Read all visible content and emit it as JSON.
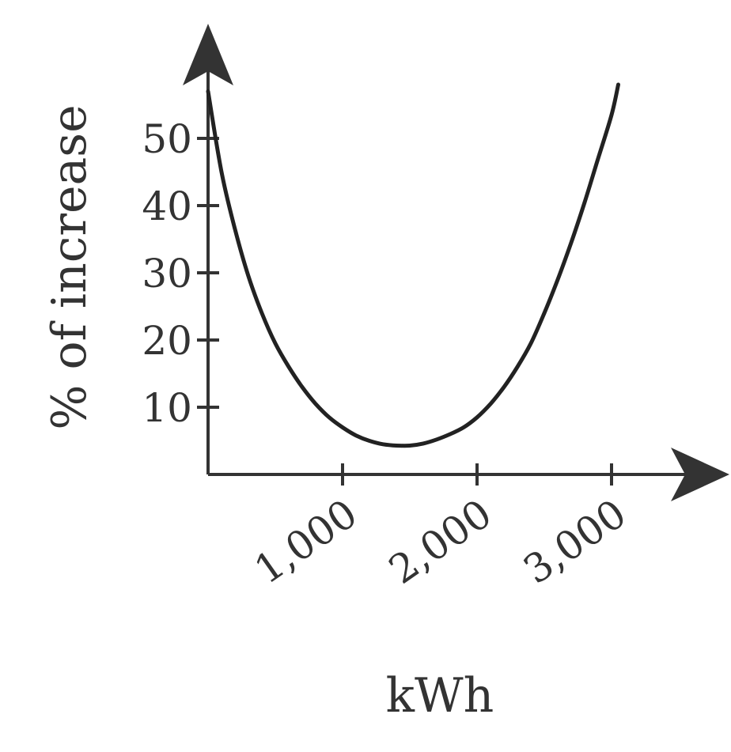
{
  "chart_data": {
    "type": "line",
    "xlabel": "kWh",
    "ylabel": "% of increase",
    "xlim": [
      0,
      3500
    ],
    "ylim": [
      0,
      60
    ],
    "x_ticks": [
      1000,
      2000,
      3000
    ],
    "x_tick_labels": [
      "1,000",
      "2,000",
      "3,000"
    ],
    "y_ticks": [
      10,
      20,
      30,
      40,
      50
    ],
    "y_tick_labels": [
      "10",
      "20",
      "30",
      "40",
      "50"
    ],
    "grid": false,
    "series": [
      {
        "color": "#222222",
        "x": [
          0,
          100,
          200,
          300,
          400,
          500,
          600,
          700,
          800,
          900,
          1000,
          1100,
          1200,
          1300,
          1400,
          1500,
          1600,
          1700,
          1800,
          1900,
          2000,
          2100,
          2200,
          2300,
          2400,
          2500,
          2600,
          2700,
          2800,
          2900,
          3000,
          3050
        ],
        "y": [
          57,
          45,
          36.5,
          29.5,
          24,
          19.5,
          16,
          13,
          10.5,
          8.5,
          7,
          5.8,
          5,
          4.5,
          4.3,
          4.3,
          4.6,
          5.2,
          6,
          7,
          8.5,
          10.5,
          13,
          16,
          19.5,
          24,
          29,
          34.5,
          40.5,
          47,
          53.5,
          58
        ]
      }
    ]
  }
}
